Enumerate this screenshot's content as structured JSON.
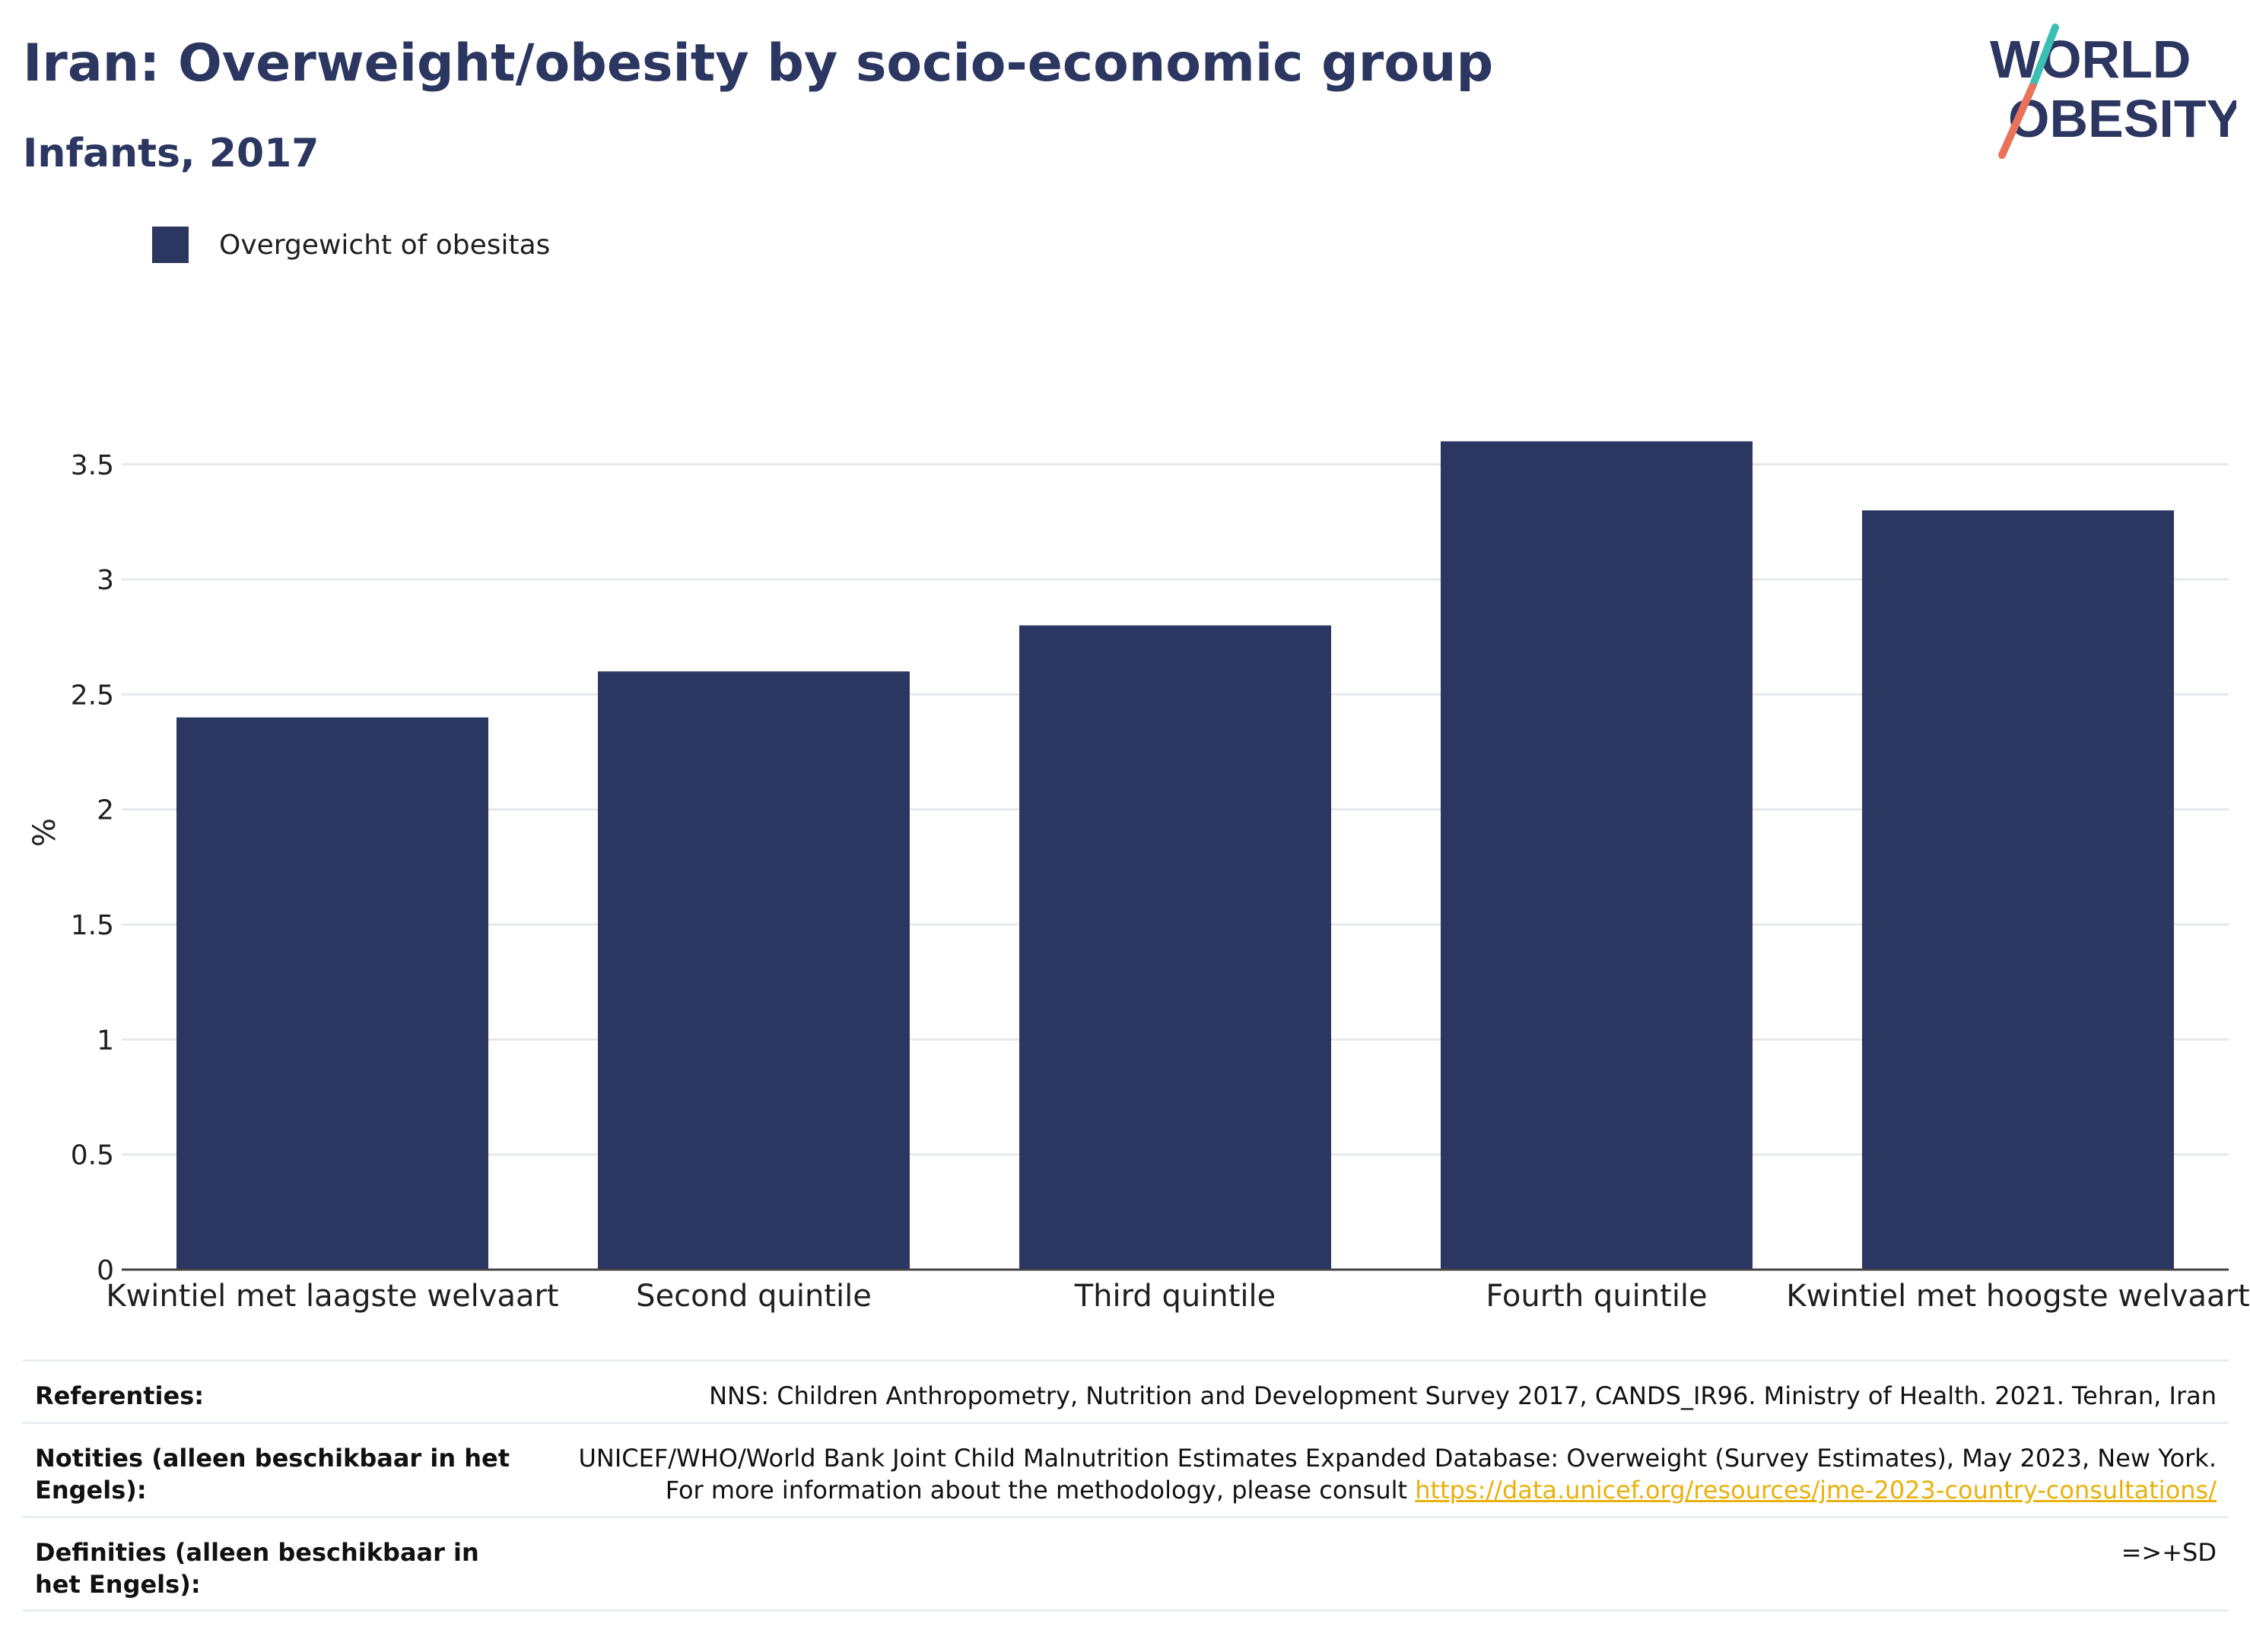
{
  "title": "Iran: Overweight/obesity by socio-economic group",
  "subtitle": "Infants, 2017",
  "logo": {
    "line1": "WORLD",
    "line2": "OBESITY",
    "colors": {
      "text": "#2b3661",
      "teal": "#3bbfb3",
      "coral": "#e8735a"
    }
  },
  "legend": {
    "label": "Overgewicht of obesitas",
    "color": "#2b3661"
  },
  "chart_data": {
    "type": "bar",
    "categories": [
      "Kwintiel met laagste welvaart",
      "Second quintile",
      "Third quintile",
      "Fourth quintile",
      "Kwintiel met hoogste welvaart"
    ],
    "series": [
      {
        "name": "Overgewicht of obesitas",
        "values": [
          2.4,
          2.6,
          2.8,
          3.6,
          3.3
        ],
        "color": "#2b3661"
      }
    ],
    "ylabel": "%",
    "ylim": [
      0,
      3.8
    ],
    "yticks": [
      0,
      0.5,
      1,
      1.5,
      2,
      2.5,
      3,
      3.5
    ],
    "ytick_labels": [
      "0",
      "0.5",
      "1",
      "1.5",
      "2",
      "2.5",
      "3",
      "3.5"
    ],
    "grid": true,
    "legend_position": "top-left"
  },
  "footer": {
    "references_label": "Referenties:",
    "references_value": "NNS: Children Anthropometry, Nutrition and Development Survey 2017, CANDS_IR96. Ministry of Health. 2021. Tehran, Iran",
    "notes_label": "Notities (alleen beschikbaar in het Engels):",
    "notes_value_text": "UNICEF/WHO/World Bank Joint Child Malnutrition Estimates Expanded Database: Overweight (Survey Estimates), May 2023, New York. For more information about the methodology, please consult",
    "notes_link": "https://data.unicef.org/resources/jme-2023-country-consultations/",
    "definitions_label": "Definities (alleen beschikbaar in het Engels):",
    "definitions_value": "=>+SD"
  }
}
